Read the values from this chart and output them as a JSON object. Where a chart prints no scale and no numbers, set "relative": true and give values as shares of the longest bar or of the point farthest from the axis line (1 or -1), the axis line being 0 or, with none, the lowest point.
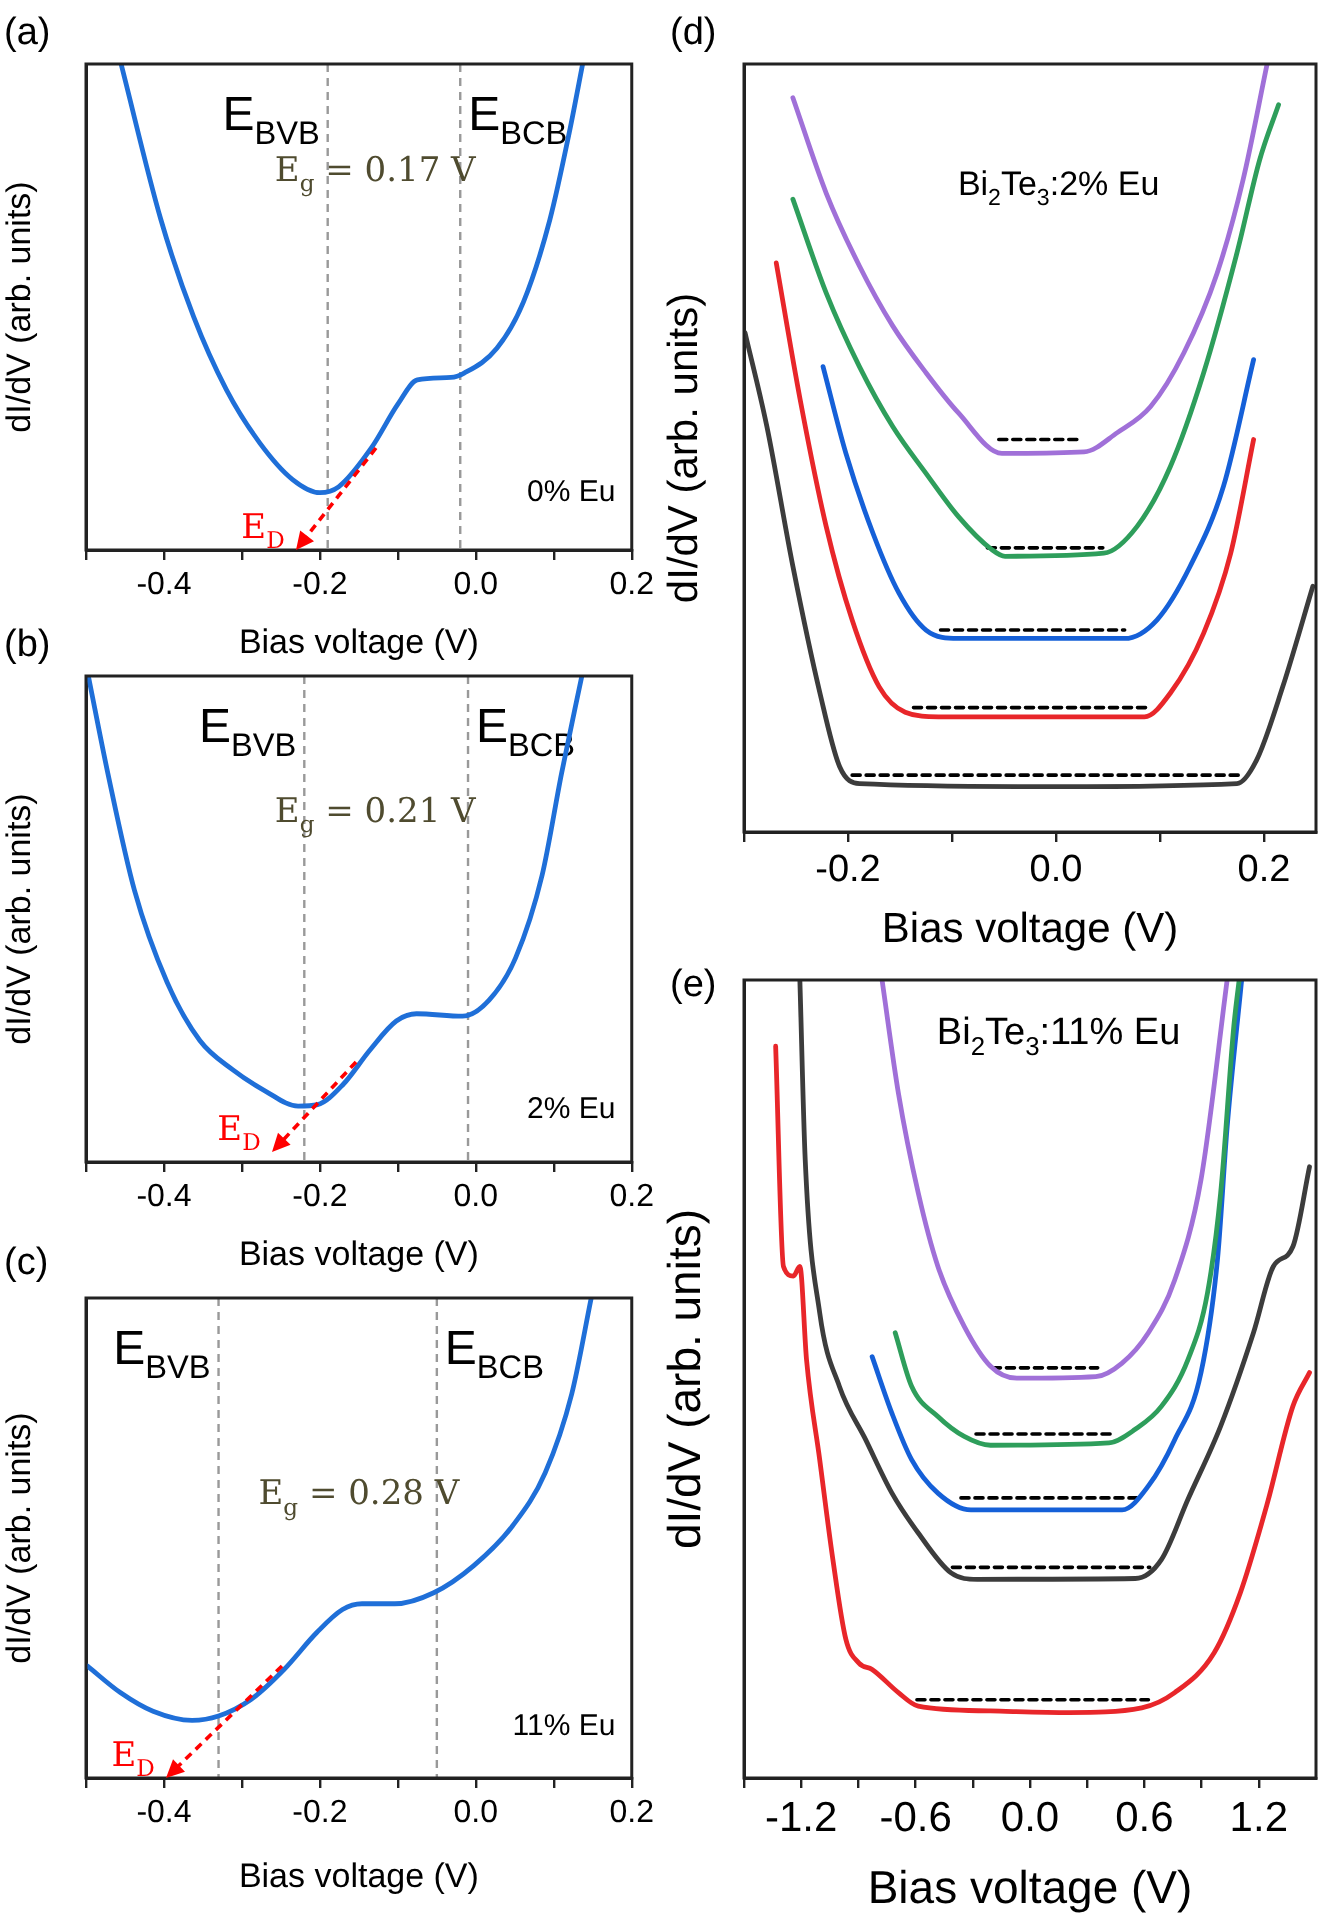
{
  "chart_data": [
    {
      "type": "line",
      "title": "(a)",
      "xlabel": "Bias voltage (V)",
      "ylabel": "dI/dV (arb. units)",
      "relative": true,
      "tick_labels": "x",
      "xlim": [
        -0.5,
        0.2
      ],
      "xticks": [
        {
          "value": -0.5,
          "label": null
        },
        -0.4,
        {
          "value": -0.3,
          "label": null
        },
        -0.2,
        {
          "value": -0.1,
          "label": null
        },
        {
          "value": 0,
          "label": "0.0"
        },
        {
          "value": 0.1,
          "label": null
        },
        0.2
      ],
      "series": [
        {
          "color": "#1f6fd8",
          "x": [
            -0.455,
            -0.404,
            -0.362,
            -0.32,
            -0.277,
            -0.235,
            -0.2,
            -0.176,
            -0.134,
            -0.1,
            -0.075,
            -0.032,
            -0.015,
            0.027,
            0.061,
            0.095,
            0.12,
            0.137
          ],
          "values": [
            1.0,
            0.68,
            0.48,
            0.33,
            0.22,
            0.145,
            0.118,
            0.13,
            0.21,
            0.3,
            0.35,
            0.355,
            0.364,
            0.415,
            0.51,
            0.68,
            0.86,
            1.0
          ]
        }
      ],
      "ref_lines": [
        {
          "axis": "x",
          "value": -0.19,
          "label": "E$_{BVB}$",
          "color": "#999999",
          "line_style": "dashed"
        },
        {
          "axis": "x",
          "value": -0.02,
          "label": "E$_{BCB}$",
          "color": "#999999",
          "line_style": "dashed"
        }
      ],
      "annotations": [
        "E$_{g}$ = 0.17 V",
        "0% Eu",
        "E$_{D}$"
      ]
    },
    {
      "type": "line",
      "title": "(b)",
      "xlabel": "Bias voltage (V)",
      "ylabel": "dI/dV (arb. units)",
      "relative": true,
      "tick_labels": "x",
      "xlim": [
        -0.5,
        0.2
      ],
      "xticks": [
        {
          "value": -0.5,
          "label": null
        },
        -0.4,
        {
          "value": -0.3,
          "label": null
        },
        -0.2,
        {
          "value": -0.1,
          "label": null
        },
        {
          "value": 0,
          "label": "0.0"
        },
        {
          "value": 0.1,
          "label": null
        },
        0.2
      ],
      "series": [
        {
          "color": "#1f6fd8",
          "x": [
            -0.497,
            -0.472,
            -0.438,
            -0.396,
            -0.354,
            -0.312,
            -0.27,
            -0.228,
            -0.203,
            -0.17,
            -0.136,
            -0.102,
            -0.076,
            -0.017,
            0.017,
            0.051,
            0.085,
            0.11,
            0.136
          ],
          "values": [
            1.0,
            0.8,
            0.56,
            0.37,
            0.25,
            0.19,
            0.146,
            0.115,
            0.118,
            0.16,
            0.23,
            0.29,
            0.305,
            0.3,
            0.333,
            0.42,
            0.59,
            0.8,
            1.0
          ]
        }
      ],
      "ref_lines": [
        {
          "axis": "x",
          "value": -0.22,
          "label": "E$_{BVB}$",
          "color": "#999999",
          "line_style": "dashed"
        },
        {
          "axis": "x",
          "value": -0.01,
          "label": "E$_{BCB}$",
          "color": "#999999",
          "line_style": "dashed"
        }
      ],
      "annotations": [
        "E$_{g}$ = 0.21 V",
        "2% Eu",
        "E$_{D}$"
      ]
    },
    {
      "type": "line",
      "title": "(c)",
      "xlabel": "Bias voltage (V)",
      "ylabel": "dI/dV (arb. units)",
      "relative": true,
      "tick_labels": "x",
      "xlim": [
        -0.5,
        0.2
      ],
      "xticks": [
        {
          "value": -0.5,
          "label": null
        },
        -0.4,
        {
          "value": -0.3,
          "label": null
        },
        -0.2,
        {
          "value": -0.1,
          "label": null
        },
        {
          "value": 0,
          "label": "0.0"
        },
        {
          "value": 0.1,
          "label": null
        },
        0.2
      ],
      "series": [
        {
          "color": "#1f6fd8",
          "x": [
            -0.498,
            -0.456,
            -0.414,
            -0.364,
            -0.33,
            -0.288,
            -0.246,
            -0.204,
            -0.171,
            -0.146,
            -0.104,
            -0.054,
            -0.003,
            0.047,
            0.089,
            0.123,
            0.148
          ],
          "values": [
            0.233,
            0.178,
            0.139,
            0.12,
            0.129,
            0.164,
            0.226,
            0.303,
            0.351,
            0.363,
            0.363,
            0.386,
            0.442,
            0.525,
            0.636,
            0.8,
            1.0
          ]
        }
      ],
      "ref_lines": [
        {
          "axis": "x",
          "value": -0.33,
          "label": "E$_{BVB}$",
          "color": "#999999",
          "line_style": "dashed"
        },
        {
          "axis": "x",
          "value": -0.05,
          "label": "E$_{BCB}$",
          "color": "#999999",
          "line_style": "dashed"
        }
      ],
      "annotations": [
        "E$_{g}$ = 0.28 V",
        "11% Eu",
        "E$_{D}$"
      ]
    },
    {
      "type": "line",
      "title": "(d)",
      "xlabel": "Bias voltage (V)",
      "ylabel": "dI/dV (arb. units)",
      "relative": true,
      "tick_labels": "x",
      "xlim": [
        -0.3,
        0.25
      ],
      "xticks": [
        {
          "value": -0.3,
          "label": null
        },
        -0.2,
        {
          "value": -0.1,
          "label": null
        },
        {
          "value": 0,
          "label": "0.0"
        },
        {
          "value": 0.1,
          "label": null
        },
        0.2
      ],
      "series": [
        {
          "color": "#a070d8",
          "x": [
            -0.253,
            -0.221,
            -0.189,
            -0.157,
            -0.125,
            -0.094,
            -0.052,
            0.027,
            0.059,
            0.091,
            0.123,
            0.155,
            0.18,
            0.203
          ],
          "values": [
            0.956,
            0.832,
            0.737,
            0.659,
            0.598,
            0.546,
            0.493,
            0.495,
            0.52,
            0.554,
            0.624,
            0.728,
            0.85,
            1.0
          ]
        },
        {
          "color": "#2e9e5b",
          "x": [
            -0.253,
            -0.221,
            -0.189,
            -0.157,
            -0.125,
            -0.094,
            -0.062,
            -0.049,
            0.046,
            0.078,
            0.11,
            0.142,
            0.174,
            0.196,
            0.214
          ],
          "values": [
            0.824,
            0.702,
            0.606,
            0.528,
            0.467,
            0.411,
            0.368,
            0.359,
            0.363,
            0.398,
            0.476,
            0.598,
            0.754,
            0.876,
            0.947
          ]
        },
        {
          "color": "#1560d8",
          "x": [
            -0.224,
            -0.202,
            -0.176,
            -0.151,
            -0.125,
            -0.094,
            0.066,
            0.097,
            0.129,
            0.161,
            0.19
          ],
          "values": [
            0.606,
            0.493,
            0.389,
            0.311,
            0.263,
            0.252,
            0.252,
            0.276,
            0.346,
            0.45,
            0.615
          ]
        },
        {
          "color": "#e8262a",
          "x": [
            -0.269,
            -0.246,
            -0.221,
            -0.196,
            -0.17,
            -0.145,
            -0.113,
            0.085,
            0.11,
            0.142,
            0.168,
            0.19
          ],
          "values": [
            0.741,
            0.563,
            0.398,
            0.276,
            0.189,
            0.156,
            0.15,
            0.15,
            0.181,
            0.259,
            0.363,
            0.511
          ]
        },
        {
          "color": "#3c3c3c",
          "x": [
            -0.299,
            -0.278,
            -0.253,
            -0.227,
            -0.208,
            -0.189,
            0.002,
            0.174,
            0.193,
            0.218,
            0.247
          ],
          "values": [
            0.65,
            0.528,
            0.346,
            0.181,
            0.085,
            0.063,
            0.059,
            0.063,
            0.094,
            0.189,
            0.32
          ]
        },
        {
          "color": "#000000",
          "line_style": "dashed",
          "x": [
            -0.055,
            0.024
          ],
          "values": [
            0.511,
            0.511
          ]
        },
        {
          "color": "#000000",
          "line_style": "dashed",
          "x": [
            -0.066,
            0.045
          ],
          "values": [
            0.37,
            0.37
          ]
        },
        {
          "color": "#000000",
          "line_style": "dashed",
          "x": [
            -0.111,
            0.066
          ],
          "values": [
            0.263,
            0.263
          ]
        },
        {
          "color": "#000000",
          "line_style": "dashed",
          "x": [
            -0.137,
            0.088
          ],
          "values": [
            0.162,
            0.162
          ]
        },
        {
          "color": "#000000",
          "line_style": "dashed",
          "x": [
            -0.196,
            0.176
          ],
          "values": [
            0.074,
            0.074
          ]
        }
      ],
      "annotations": [
        "Bi$_{2}$Te$_{3}$:2% Eu"
      ]
    },
    {
      "type": "line",
      "title": "(e)",
      "xlabel": "Bias voltage (V)",
      "ylabel": "dI/dV (arb. units)",
      "relative": true,
      "tick_labels": "x",
      "xlim": [
        -1.5,
        1.5
      ],
      "xticks": [
        {
          "value": -1.5,
          "label": null
        },
        -1.2,
        {
          "value": -0.9,
          "label": null
        },
        -0.6,
        {
          "value": -0.3,
          "label": null
        },
        {
          "value": 0,
          "label": "0.0"
        },
        {
          "value": 0.3,
          "label": null
        },
        0.6,
        {
          "value": 0.9,
          "label": null
        },
        1.2
      ],
      "series": [
        {
          "color": "#a070d8",
          "x": [
            -0.776,
            -0.69,
            -0.586,
            -0.483,
            -0.345,
            -0.207,
            -0.069,
            0.345,
            0.483,
            0.621,
            0.759,
            0.897,
            1.034
          ],
          "values": [
            1.0,
            0.858,
            0.733,
            0.641,
            0.566,
            0.516,
            0.501,
            0.503,
            0.52,
            0.558,
            0.624,
            0.75,
            1.0
          ]
        },
        {
          "color": "#2e9e5b",
          "x": [
            -0.707,
            -0.621,
            -0.483,
            -0.345,
            -0.207,
            0.414,
            0.552,
            0.69,
            0.828,
            0.931,
            1.0,
            1.069,
            1.097
          ],
          "values": [
            0.558,
            0.491,
            0.453,
            0.428,
            0.417,
            0.42,
            0.437,
            0.466,
            0.524,
            0.608,
            0.733,
            0.942,
            1.0
          ]
        },
        {
          "color": "#1560d8",
          "x": [
            -0.828,
            -0.724,
            -0.621,
            -0.483,
            -0.31,
            0.483,
            0.621,
            0.759,
            0.897,
            0.983,
            1.034,
            1.11
          ],
          "values": [
            0.528,
            0.457,
            0.399,
            0.357,
            0.336,
            0.336,
            0.366,
            0.424,
            0.508,
            0.649,
            0.816,
            1.0
          ]
        },
        {
          "color": "#3c3c3c",
          "x": [
            -1.207,
            -1.179,
            -1.103,
            -1.0,
            -0.862,
            -0.724,
            -0.586,
            -0.414,
            -0.276,
            0.552,
            0.69,
            0.828,
            1.0,
            1.172,
            1.276,
            1.379,
            1.466
          ],
          "values": [
            1.0,
            0.775,
            0.583,
            0.491,
            0.424,
            0.357,
            0.307,
            0.257,
            0.249,
            0.25,
            0.274,
            0.349,
            0.441,
            0.558,
            0.641,
            0.666,
            0.766
          ]
        },
        {
          "color": "#e8262a",
          "x": [
            -1.334,
            -1.293,
            -1.241,
            -1.207,
            -1.172,
            -1.103,
            -1.034,
            -0.966,
            -0.897,
            -0.828,
            -0.69,
            -0.586,
            -0.207,
            0.207,
            0.586,
            0.759,
            0.966,
            1.103,
            1.241,
            1.379,
            1.466
          ],
          "values": [
            0.917,
            0.641,
            0.629,
            0.641,
            0.524,
            0.399,
            0.274,
            0.174,
            0.144,
            0.136,
            0.107,
            0.09,
            0.084,
            0.082,
            0.088,
            0.107,
            0.157,
            0.232,
            0.341,
            0.466,
            0.508
          ]
        },
        {
          "color": "#000000",
          "line_style": "dashed",
          "x": [
            -0.197,
            0.355
          ],
          "values": [
            0.514,
            0.514
          ]
        },
        {
          "color": "#000000",
          "line_style": "dashed",
          "x": [
            -0.283,
            0.424
          ],
          "values": [
            0.431,
            0.431
          ]
        },
        {
          "color": "#000000",
          "line_style": "dashed",
          "x": [
            -0.362,
            0.562
          ],
          "values": [
            0.351,
            0.351
          ]
        },
        {
          "color": "#000000",
          "line_style": "dashed",
          "x": [
            -0.407,
            0.628
          ],
          "values": [
            0.264,
            0.264
          ]
        },
        {
          "color": "#000000",
          "line_style": "dashed",
          "x": [
            -0.593,
            0.621
          ],
          "values": [
            0.098,
            0.098
          ]
        }
      ],
      "annotations": [
        "Bi$_{2}$Te$_{3}$:11% Eu"
      ]
    }
  ]
}
